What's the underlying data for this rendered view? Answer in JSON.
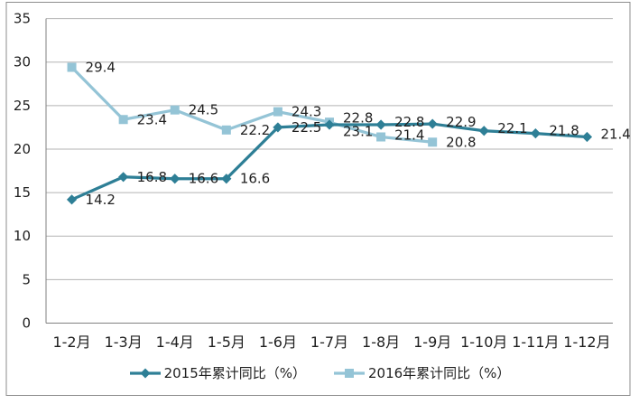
{
  "chart_data": {
    "type": "line",
    "title": "",
    "categories": [
      "1-2月",
      "1-3月",
      "1-4月",
      "1-5月",
      "1-6月",
      "1-7月",
      "1-8月",
      "1-9月",
      "1-10月",
      "1-11月",
      "1-12月"
    ],
    "series": [
      {
        "name": "2015年累计同比（%）",
        "marker": "diamond",
        "color": "#2E7F96",
        "values": [
          14.2,
          16.8,
          16.6,
          16.6,
          22.5,
          22.8,
          22.8,
          22.9,
          22.1,
          21.8,
          21.4
        ],
        "labels": [
          "14.2",
          "16.8",
          "16.6",
          "16.6",
          "22.5",
          "22.8",
          "22.8",
          "22.9",
          "22.1",
          "21.8",
          "21.4"
        ]
      },
      {
        "name": "2016年累计同比（%）",
        "marker": "square",
        "color": "#94C4D6",
        "values": [
          29.4,
          23.4,
          24.5,
          22.2,
          24.3,
          23.1,
          21.4,
          20.8
        ],
        "labels": [
          "29.4",
          "23.4",
          "24.5",
          "22.2",
          "24.3",
          "23.1",
          "21.4",
          "20.8"
        ]
      }
    ],
    "xlabel": "",
    "ylabel": "",
    "y_axis": {
      "min": 0,
      "max": 35,
      "step": 5,
      "tick_labels": [
        "0",
        "5",
        "10",
        "15",
        "20",
        "25",
        "30",
        "35"
      ]
    },
    "grid": true,
    "data_labels": true,
    "legend_position": "bottom"
  },
  "colors": {
    "background": "#ffffff",
    "chart_border": "#8c8c8c",
    "gridline": "#b3b3b3",
    "axis_line": "#808080",
    "text": "#1f1f1f",
    "series_2015": "#2E7F96",
    "series_2016": "#94C4D6"
  }
}
